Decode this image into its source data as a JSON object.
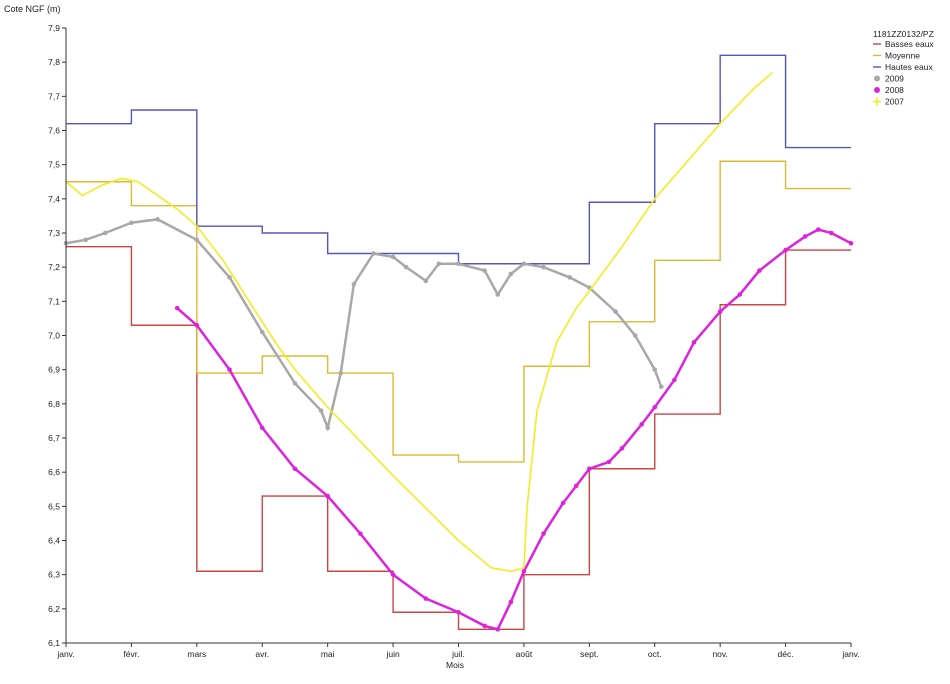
{
  "chart_data": {
    "type": "line",
    "ylabel": "Cote NGF (m)",
    "xlabel": "Mois",
    "ylim": [
      6.1,
      7.9
    ],
    "xlim": [
      0,
      12
    ],
    "y_ticks": [
      "6,1",
      "6,2",
      "6,3",
      "6,4",
      "6,5",
      "6,6",
      "6,7",
      "6,8",
      "6,9",
      "7,0",
      "7,1",
      "7,2",
      "7,3",
      "7,4",
      "7,5",
      "7,6",
      "7,7",
      "7,8",
      "7,9"
    ],
    "x_ticks": [
      "janv.",
      "févr.",
      "mars",
      "avr.",
      "mai",
      "juin",
      "juil.",
      "août",
      "sept.",
      "oct.",
      "nov.",
      "déc.",
      "janv."
    ],
    "grid": false,
    "legend_position": "top-right",
    "legend_title": "1181ZZ0132/PZ",
    "series": [
      {
        "name": "Basses eaux",
        "style": "step",
        "color": "#cc4444",
        "x": [
          0,
          1,
          2,
          3,
          4,
          5,
          6,
          7,
          8,
          9,
          10,
          11,
          12
        ],
        "y": [
          7.26,
          7.03,
          6.31,
          6.53,
          6.31,
          6.19,
          6.14,
          6.3,
          6.61,
          6.77,
          7.09,
          7.25,
          7.25
        ]
      },
      {
        "name": "Moyenne",
        "style": "step",
        "color": "#ddb833",
        "x": [
          0,
          1,
          2,
          3,
          4,
          5,
          6,
          7,
          8,
          9,
          10,
          11,
          12
        ],
        "y": [
          7.45,
          7.38,
          6.89,
          6.94,
          6.89,
          6.65,
          6.63,
          6.91,
          7.04,
          7.22,
          7.51,
          7.43,
          7.43
        ]
      },
      {
        "name": "Hautes eaux",
        "style": "step",
        "color": "#5555bb",
        "x": [
          0,
          1,
          2,
          3,
          4,
          5,
          6,
          7,
          8,
          9,
          10,
          11,
          12
        ],
        "y": [
          7.62,
          7.66,
          7.32,
          7.3,
          7.24,
          7.24,
          7.21,
          7.21,
          7.39,
          7.62,
          7.82,
          7.55,
          7.55
        ]
      },
      {
        "name": "2009",
        "style": "markers",
        "color": "#a8a8a8",
        "x": [
          0,
          0.3,
          0.6,
          1.0,
          1.4,
          2.0,
          2.5,
          3.0,
          3.5,
          3.9,
          4.0,
          4.2,
          4.4,
          4.7,
          5.0,
          5.2,
          5.5,
          5.7,
          6.0,
          6.4,
          6.6,
          6.8,
          7.0,
          7.3,
          7.7,
          8.0,
          8.4,
          8.7,
          9.0,
          9.1
        ],
        "y": [
          7.27,
          7.28,
          7.3,
          7.33,
          7.34,
          7.28,
          7.17,
          7.01,
          6.86,
          6.78,
          6.73,
          6.89,
          7.15,
          7.24,
          7.23,
          7.2,
          7.16,
          7.21,
          7.21,
          7.19,
          7.12,
          7.18,
          7.21,
          7.2,
          7.17,
          7.14,
          7.07,
          7.0,
          6.9,
          6.85
        ]
      },
      {
        "name": "2008",
        "style": "markers",
        "color": "#dd22dd",
        "x": [
          1.7,
          2.0,
          2.5,
          3.0,
          3.5,
          4.0,
          4.5,
          5.0,
          5.5,
          6.0,
          6.4,
          6.6,
          6.8,
          7.0,
          7.3,
          7.6,
          7.8,
          8.0,
          8.3,
          8.5,
          8.8,
          9.0,
          9.3,
          9.6,
          10.0,
          10.3,
          10.6,
          11.0,
          11.3,
          11.5,
          11.7,
          12.0
        ],
        "y": [
          7.08,
          7.03,
          6.9,
          6.73,
          6.61,
          6.53,
          6.42,
          6.3,
          6.23,
          6.19,
          6.15,
          6.14,
          6.22,
          6.31,
          6.42,
          6.51,
          6.56,
          6.61,
          6.63,
          6.67,
          6.74,
          6.79,
          6.87,
          6.98,
          7.07,
          7.12,
          7.19,
          7.25,
          7.29,
          7.31,
          7.3,
          7.27
        ]
      },
      {
        "name": "2007",
        "style": "line",
        "color": "#eeee22",
        "x": [
          0,
          0.25,
          0.55,
          0.85,
          1.1,
          1.4,
          1.7,
          2.0,
          2.4,
          2.8,
          3.2,
          3.5,
          4.0,
          5.0,
          6.0,
          6.5,
          6.8,
          7.0,
          7.05,
          7.2,
          7.5,
          7.8,
          8.0,
          8.5,
          9.0,
          9.5,
          10.0,
          10.5,
          10.8
        ],
        "y": [
          7.45,
          7.41,
          7.44,
          7.46,
          7.45,
          7.41,
          7.37,
          7.32,
          7.22,
          7.1,
          6.98,
          6.9,
          6.79,
          6.59,
          6.4,
          6.32,
          6.31,
          6.32,
          6.5,
          6.78,
          6.98,
          7.08,
          7.13,
          7.26,
          7.4,
          7.51,
          7.62,
          7.72,
          7.77
        ]
      }
    ]
  }
}
